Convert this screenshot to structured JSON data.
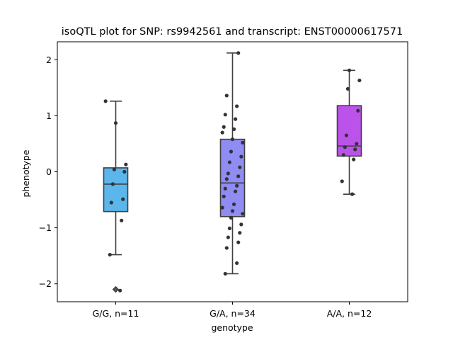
{
  "chart_data": {
    "type": "box",
    "title": "isoQTL plot for SNP: rs9942561 and transcript: ENST00000617571",
    "xlabel": "genotype",
    "ylabel": "phenotype",
    "ylim": [
      -2.32,
      2.32
    ],
    "yticks": [
      -2,
      -1,
      0,
      1,
      2
    ],
    "ytick_labels": [
      "−2",
      "−1",
      "0",
      "1",
      "2"
    ],
    "grid": false,
    "categories": [
      "G/G, n=11",
      "G/A, n=34",
      "A/A, n=12"
    ],
    "colors": [
      "#5bb6ec",
      "#8f8cf4",
      "#bb53eb"
    ],
    "boxes": [
      {
        "q1": -0.71,
        "median": -0.22,
        "q3": 0.07,
        "whisker_low": -1.48,
        "whisker_high": 1.26,
        "outliers": [
          -2.1
        ]
      },
      {
        "q1": -0.8,
        "median": -0.2,
        "q3": 0.58,
        "whisker_low": -1.82,
        "whisker_high": 2.12,
        "outliers": []
      },
      {
        "q1": 0.28,
        "median": 0.46,
        "q3": 1.18,
        "whisker_low": -0.4,
        "whisker_high": 1.81,
        "outliers": []
      }
    ],
    "points": [
      [
        1.26,
        0.87,
        0.13,
        0.04,
        0.0,
        -0.22,
        -0.49,
        -0.55,
        -0.87,
        -1.48,
        -2.12
      ],
      [
        2.12,
        1.36,
        1.17,
        1.02,
        0.94,
        0.8,
        0.76,
        0.7,
        0.58,
        0.52,
        0.36,
        0.27,
        0.17,
        0.08,
        -0.03,
        -0.08,
        -0.13,
        -0.25,
        -0.3,
        -0.35,
        -0.44,
        -0.58,
        -0.64,
        -0.7,
        -0.75,
        -0.82,
        -0.94,
        -1.01,
        -1.09,
        -1.17,
        -1.26,
        -1.36,
        -1.63,
        -1.82
      ],
      [
        1.81,
        1.63,
        1.48,
        1.09,
        0.65,
        0.5,
        0.44,
        0.4,
        0.3,
        0.22,
        -0.17,
        -0.4
      ]
    ]
  }
}
